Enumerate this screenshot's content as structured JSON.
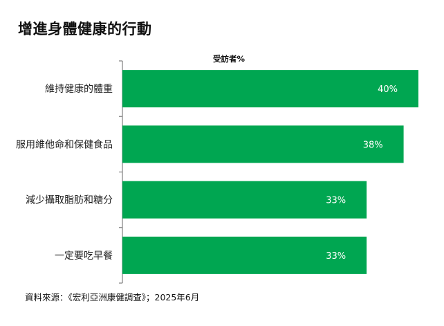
{
  "title": "增進身體健康的行動",
  "source": "資料來源：《宏利亞洲康健調查》；2025年6月",
  "colors": {
    "bar": "#00a651",
    "axis": "#7f7f7f",
    "label_in_bar": "#ffffff"
  },
  "chart_data": {
    "type": "bar",
    "orientation": "horizontal",
    "subtitle": "受訪者%",
    "categories": [
      "維持健康的體重",
      "服用維他命和保健食品",
      "減少攝取脂肪和糖分",
      "一定要吃早餐"
    ],
    "values": [
      40,
      38,
      33,
      33
    ],
    "value_labels": [
      "40%",
      "38%",
      "33%",
      "33%"
    ],
    "xlim": [
      0,
      40
    ],
    "grid": false,
    "legend": "none"
  }
}
